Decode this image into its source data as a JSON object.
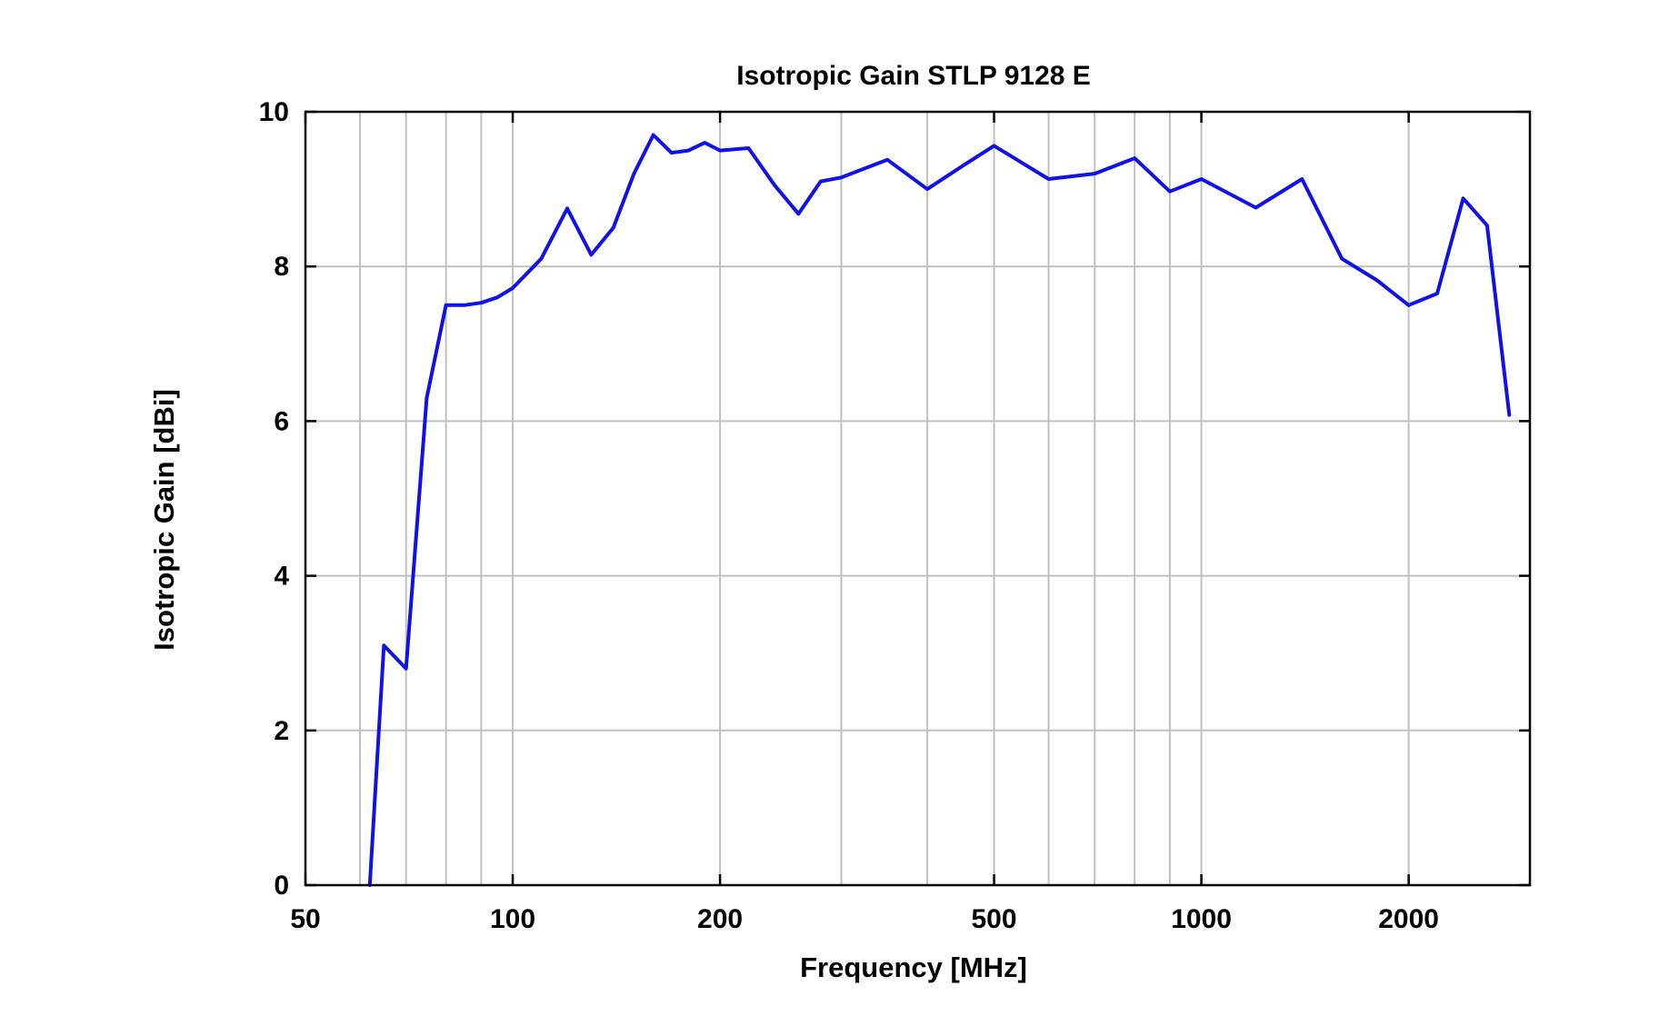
{
  "chart_data": {
    "type": "line",
    "title": "Isotropic Gain STLP 9128 E",
    "xlabel": "Frequency [MHz]",
    "ylabel": "Isotropic Gain [dBi]",
    "xscale": "log",
    "xlim": [
      50,
      3000
    ],
    "ylim": [
      0,
      10
    ],
    "grid": true,
    "x_minor_grid": [
      60,
      70,
      80,
      90,
      100,
      200,
      300,
      400,
      500,
      600,
      700,
      800,
      900,
      1000,
      2000
    ],
    "x_ticks": [
      50,
      100,
      200,
      500,
      1000,
      2000
    ],
    "x_tick_labels": [
      "50",
      "100",
      "200",
      "500",
      "1000",
      "2000"
    ],
    "y_ticks": [
      0,
      2,
      4,
      6,
      8,
      10
    ],
    "y_tick_labels": [
      "0",
      "2",
      "4",
      "6",
      "8",
      "10"
    ],
    "series": [
      {
        "color": "#1010e8",
        "x": [
          62,
          65,
          70,
          75,
          80,
          85,
          90,
          95,
          100,
          110,
          120,
          130,
          140,
          150,
          160,
          170,
          180,
          190,
          200,
          220,
          240,
          260,
          280,
          300,
          350,
          400,
          450,
          500,
          600,
          700,
          800,
          900,
          1000,
          1200,
          1400,
          1600,
          1800,
          2000,
          2200,
          2400,
          2600,
          2800
        ],
        "y": [
          0.0,
          3.1,
          2.8,
          6.3,
          7.5,
          7.5,
          7.53,
          7.6,
          7.72,
          8.1,
          8.75,
          8.15,
          8.5,
          9.2,
          9.7,
          9.47,
          9.5,
          9.6,
          9.5,
          9.53,
          9.05,
          8.68,
          9.1,
          9.15,
          9.38,
          9.0,
          9.3,
          9.56,
          9.13,
          9.2,
          9.4,
          8.97,
          9.13,
          8.76,
          9.13,
          8.1,
          7.82,
          7.5,
          7.65,
          8.88,
          8.53,
          6.08
        ]
      }
    ]
  }
}
